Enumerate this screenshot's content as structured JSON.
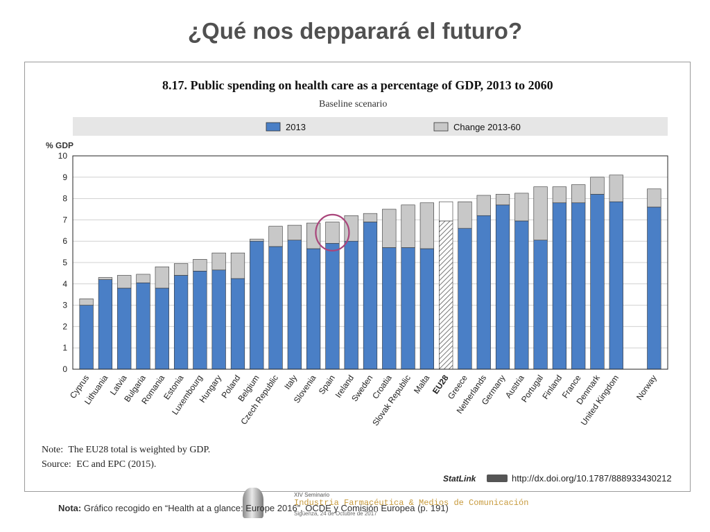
{
  "slide": {
    "title": "¿Qué nos depparará el futuro?",
    "footer_label": "Nota:",
    "footer_text": " Gráfico recogido en “Health at a glance: Europe 2016”, OCDE y Comisión Europea (p. 191)"
  },
  "logo": {
    "line1": "XIV Seminario",
    "line2": "Industria Farmacéutica & Medios de Comunicación",
    "line3": "Sigüenza, 24 de Octubre de 2017"
  },
  "colors": {
    "base": "#4a7fc6",
    "change": "#c8c8c8",
    "highlight": "#a9457b",
    "band": "#e6e6e6"
  },
  "chart_data": {
    "type": "bar",
    "stacked": true,
    "title": "8.17. Public spending on health care as a percentage of GDP, 2013 to 2060",
    "subtitle": "Baseline scenario",
    "ylabel": "% GDP",
    "ylim": [
      0,
      10
    ],
    "yticks": [
      "0",
      "1",
      "2",
      "3",
      "4",
      "5",
      "6",
      "7",
      "8",
      "9",
      "10"
    ],
    "grid": true,
    "legend_position": "top",
    "categories": [
      "Cyprus",
      "Lithuania",
      "Latvia",
      "Bulgaria",
      "Romania",
      "Estonia",
      "Luxembourg",
      "Hungary",
      "Poland",
      "Belgium",
      "Czech Republic",
      "Italy",
      "Slovenia",
      "Spain",
      "Ireland",
      "Sweden",
      "Croatia",
      "Slovak Republic",
      "Malta",
      "EU28",
      "Greece",
      "Netherlands",
      "Germany",
      "Austria",
      "Portugal",
      "Finland",
      "France",
      "Denmark",
      "United Kingdom",
      "Norway"
    ],
    "highlight_category": "Spain",
    "emphasized_category": "EU28",
    "series": [
      {
        "name": "2013",
        "values": [
          3.0,
          4.2,
          3.8,
          4.05,
          3.8,
          4.4,
          4.6,
          4.65,
          4.25,
          6.0,
          5.75,
          6.05,
          5.65,
          5.9,
          6.0,
          6.9,
          5.7,
          5.7,
          5.65,
          6.95,
          6.6,
          7.2,
          7.7,
          6.95,
          6.05,
          7.8,
          7.8,
          8.2,
          7.85,
          7.6
        ]
      },
      {
        "name": "Change 2013-60",
        "values": [
          0.3,
          0.1,
          0.6,
          0.4,
          1.0,
          0.55,
          0.55,
          0.8,
          1.2,
          0.1,
          0.95,
          0.7,
          1.2,
          1.0,
          1.2,
          0.4,
          1.8,
          2.0,
          2.15,
          0.9,
          1.25,
          0.95,
          0.5,
          1.3,
          2.5,
          0.75,
          0.85,
          0.8,
          1.25,
          0.85
        ]
      }
    ],
    "note_label": "Note:",
    "note": "The EU28 total is weighted by GDP.",
    "source_label": "Source:",
    "source": "EC and EPC (2015).",
    "statlink_label": "StatLink",
    "statlink_url": "http://dx.doi.org/10.1787/888933430212"
  }
}
